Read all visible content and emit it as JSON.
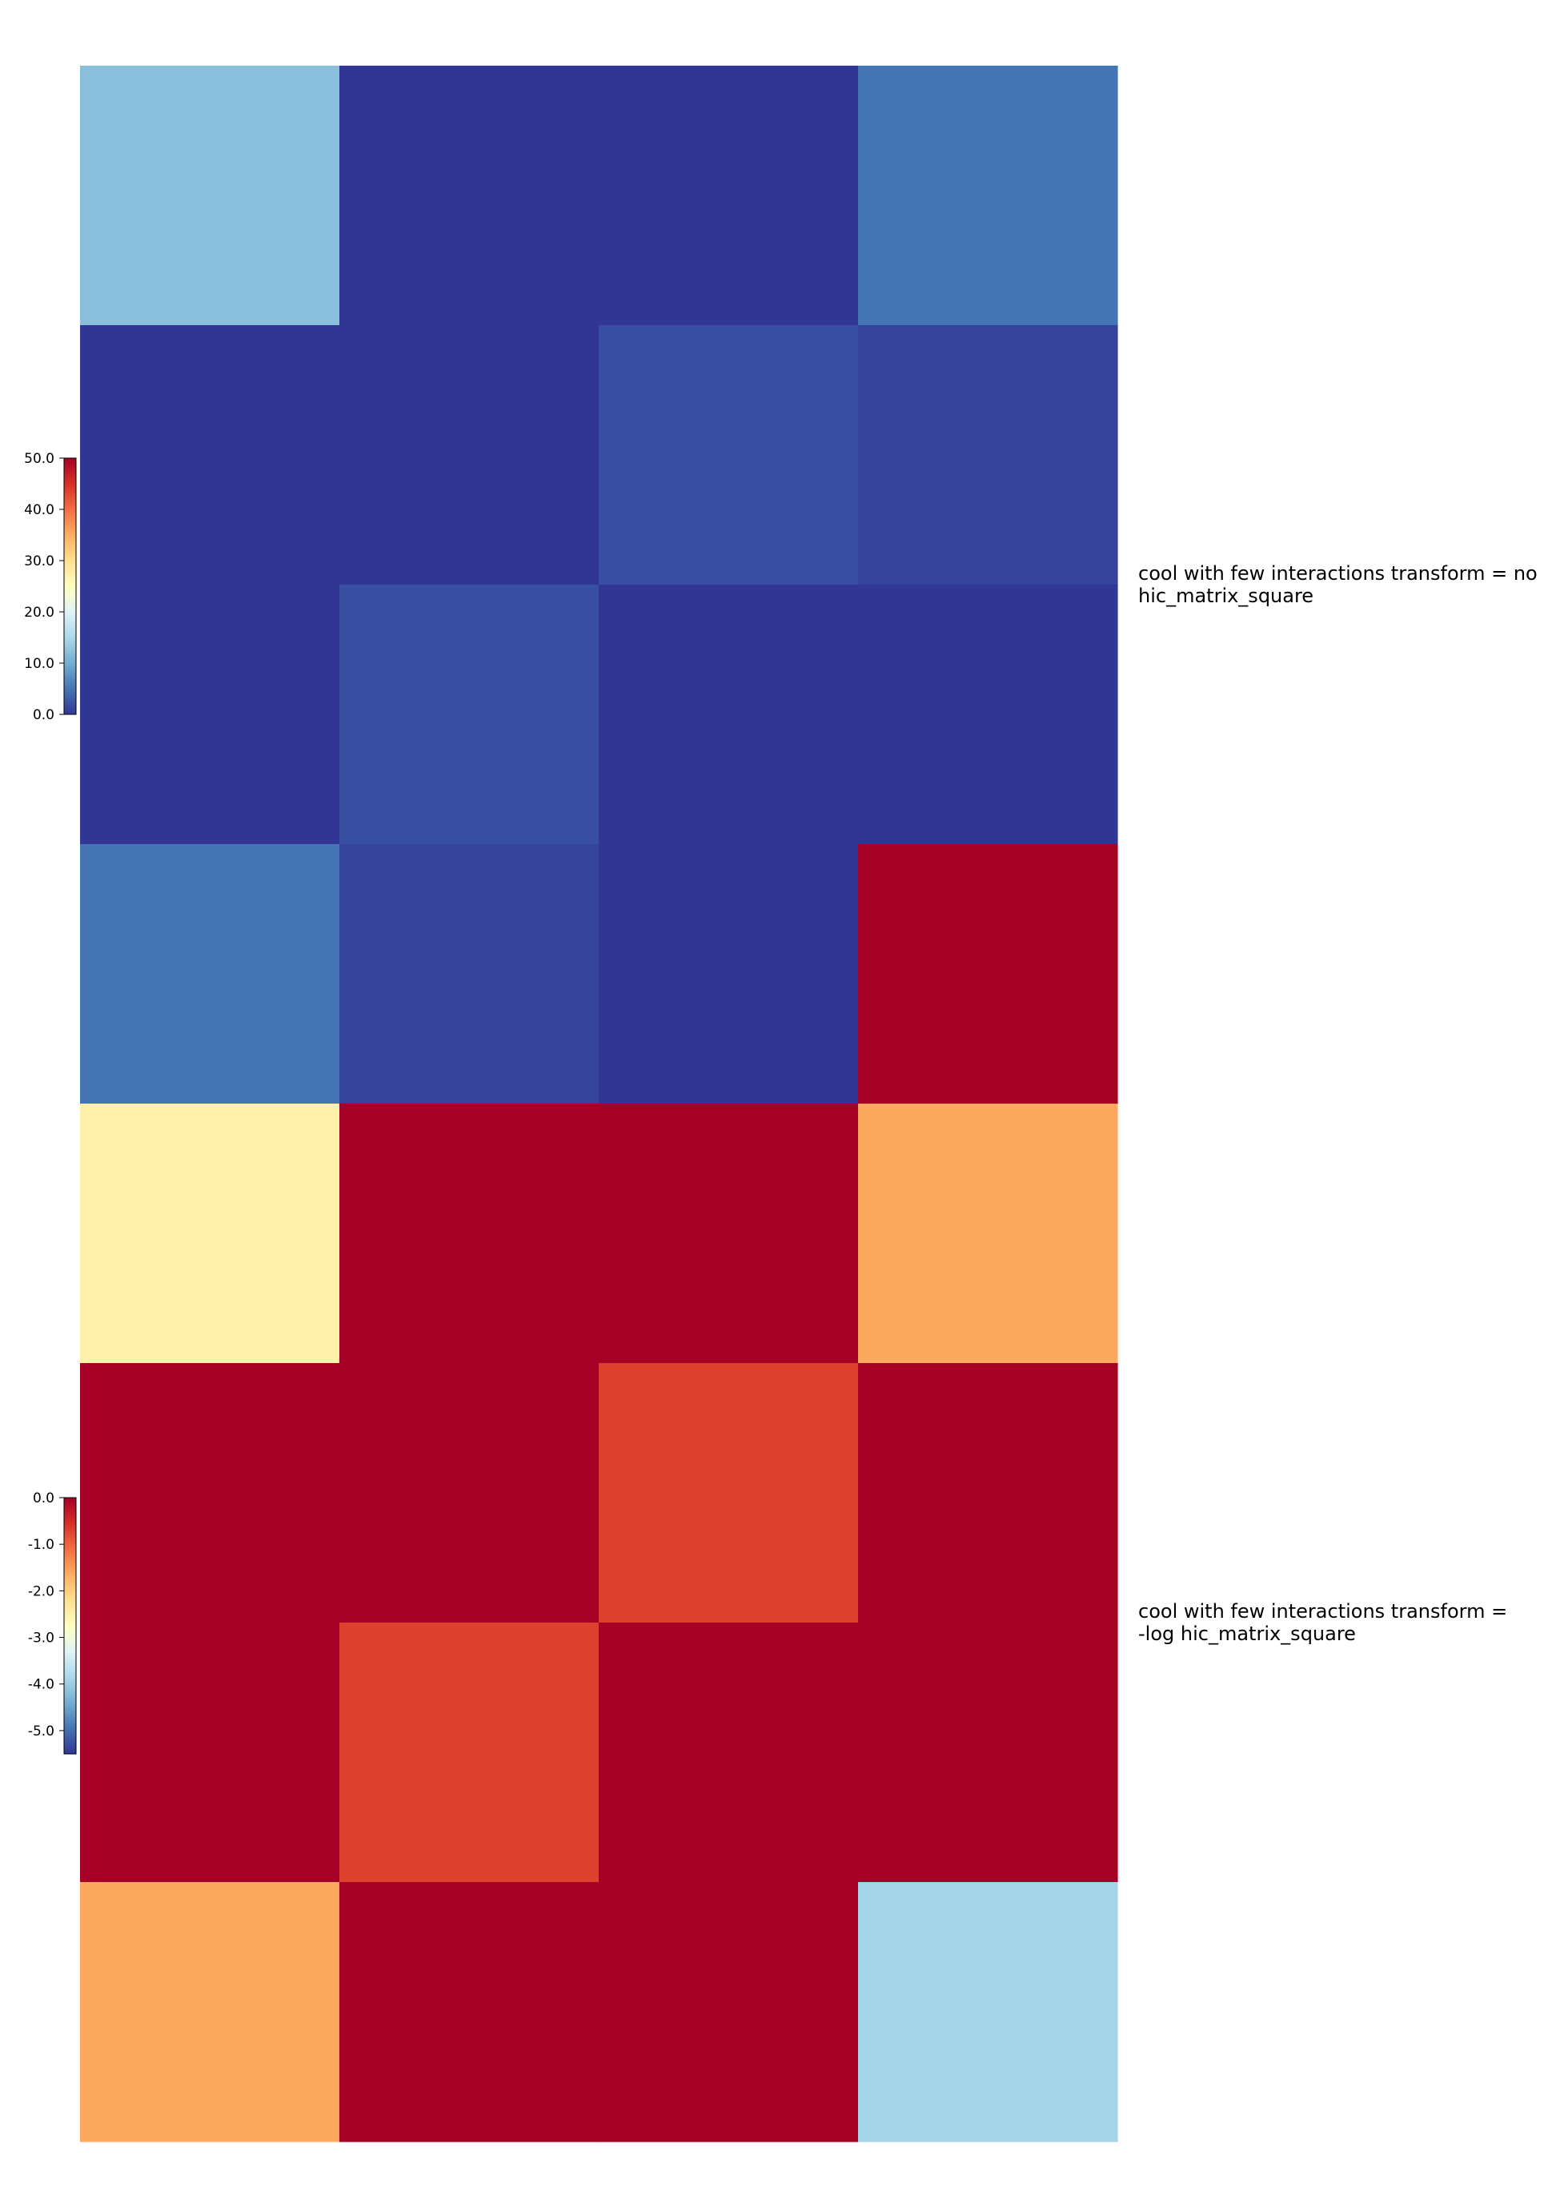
{
  "chart_data": [
    {
      "type": "heatmap",
      "title": "cool with few interactions transform = no\nhic_matrix_square",
      "rows": [
        [
          12.0,
          0.0,
          0.0,
          5.0
        ],
        [
          0.0,
          0.0,
          2.0,
          1.0
        ],
        [
          0.0,
          2.0,
          0.0,
          0.0
        ],
        [
          5.0,
          1.0,
          0.0,
          50.0
        ]
      ],
      "colorbar": {
        "min": 0.0,
        "max": 50.0,
        "ticks": [
          "50.0",
          "40.0",
          "30.0",
          "20.0",
          "10.0",
          "0.0"
        ],
        "tick_values": [
          50,
          40,
          30,
          20,
          10,
          0
        ],
        "colormap": "RdYlBu_r"
      }
    },
    {
      "type": "heatmap",
      "title": "cool with few interactions transform =\n-log hic_matrix_square",
      "rows": [
        [
          -2.5,
          0.0,
          0.0,
          -1.6
        ],
        [
          0.0,
          0.0,
          -0.7,
          0.0
        ],
        [
          0.0,
          -0.7,
          0.0,
          0.0
        ],
        [
          -1.6,
          0.0,
          0.0,
          -3.9
        ]
      ],
      "colorbar": {
        "min": -5.5,
        "max": 0.0,
        "ticks": [
          "0.0",
          "-1.0",
          "-2.0",
          "-3.0",
          "-4.0",
          "-5.0"
        ],
        "tick_values": [
          0,
          -1,
          -2,
          -3,
          -4,
          -5
        ],
        "colormap": "RdYlBu_r"
      }
    }
  ]
}
